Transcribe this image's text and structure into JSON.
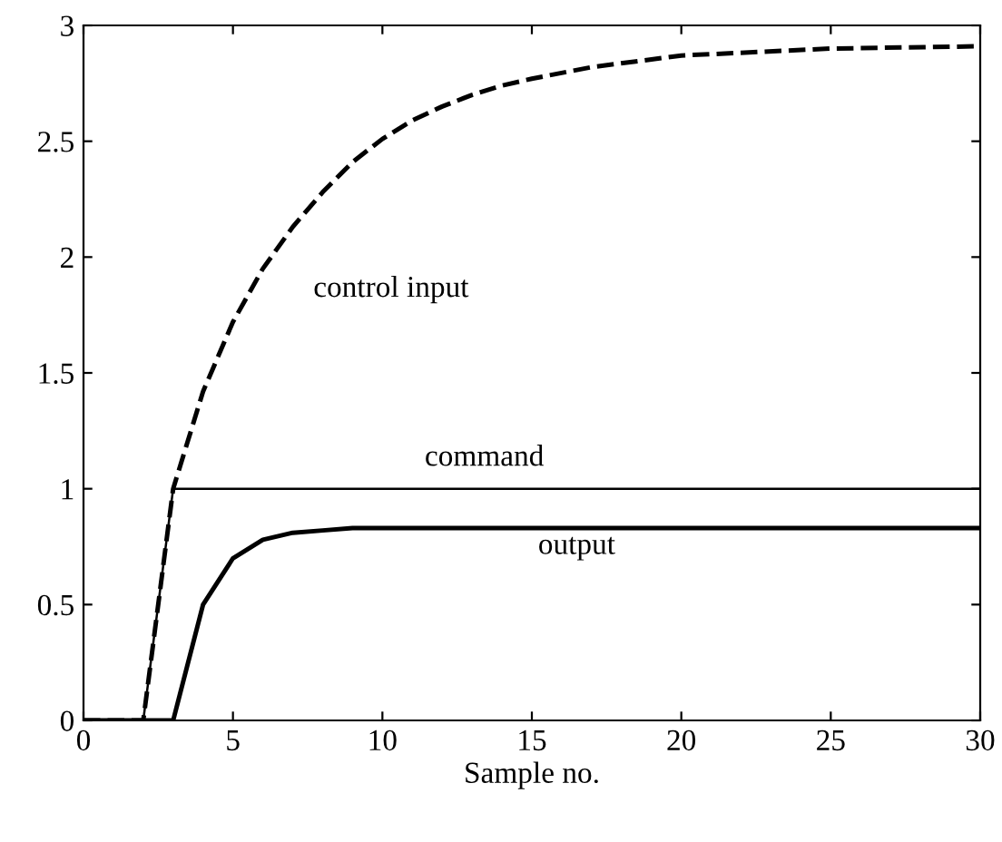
{
  "chart_data": {
    "type": "line",
    "xlabel": "Sample no.",
    "xlim": [
      0,
      30
    ],
    "xticks": [
      0,
      5,
      10,
      15,
      20,
      25,
      30
    ],
    "ylim": [
      0,
      3
    ],
    "yticks": [
      0,
      0.5,
      1,
      1.5,
      2,
      2.5,
      3
    ],
    "grid": false,
    "marker": "none",
    "series": [
      {
        "name": "control input",
        "color": "#000000",
        "line_style": "dashed",
        "x": [
          0,
          2,
          3,
          4,
          5,
          6,
          7,
          8,
          9,
          10,
          11,
          12,
          13,
          14,
          15,
          17,
          20,
          25,
          30
        ],
        "values": [
          0,
          0,
          1.0,
          1.42,
          1.72,
          1.95,
          2.13,
          2.28,
          2.41,
          2.51,
          2.59,
          2.65,
          2.7,
          2.74,
          2.77,
          2.82,
          2.87,
          2.9,
          2.91
        ]
      },
      {
        "name": "command",
        "color": "#000000",
        "line_style": "solid",
        "x": [
          0,
          2,
          3,
          30
        ],
        "values": [
          0,
          0,
          1,
          1
        ]
      },
      {
        "name": "output",
        "color": "#000000",
        "line_style": "solid",
        "x": [
          0,
          3,
          4,
          5,
          6,
          7,
          8,
          9,
          30
        ],
        "values": [
          0,
          0,
          0.5,
          0.7,
          0.78,
          0.81,
          0.82,
          0.83,
          0.83
        ]
      }
    ]
  }
}
